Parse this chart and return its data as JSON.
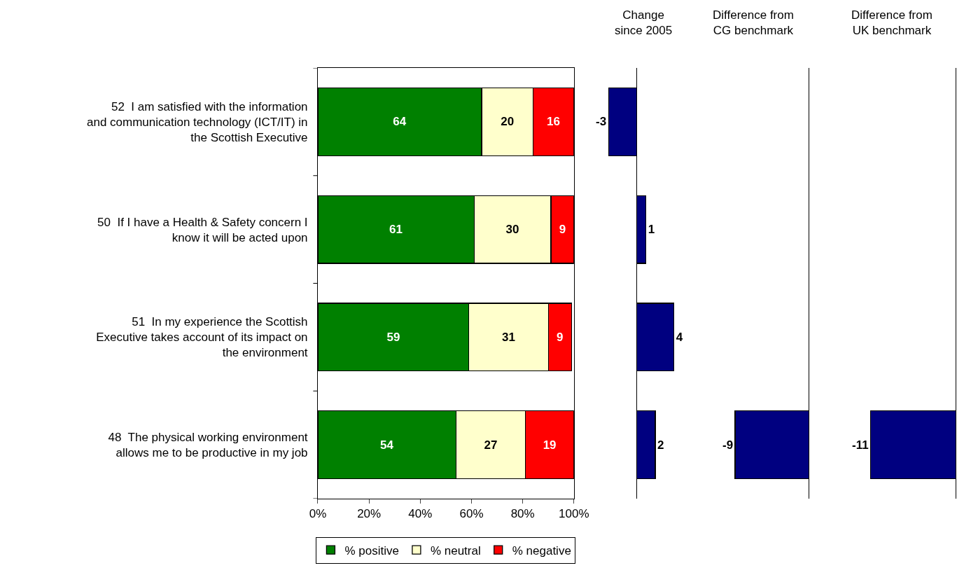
{
  "chart_data": [
    {
      "type": "bar",
      "orientation": "horizontal",
      "stacked": true,
      "categories": [
        "52  I am satisfied with the information and communication technology (ICT/IT) in the Scottish Executive",
        "50  If I have a Health & Safety concern I know it will be acted upon",
        "51  In my experience the Scottish Executive takes account of its impact on the environment",
        "48  The physical working environment allows me to be productive in my job"
      ],
      "series": [
        {
          "name": "% positive",
          "color": "#008000",
          "values": [
            64,
            61,
            59,
            54
          ]
        },
        {
          "name": "% neutral",
          "color": "#ffffcc",
          "values": [
            20,
            30,
            31,
            27
          ]
        },
        {
          "name": "% negative",
          "color": "#ff0000",
          "values": [
            16,
            9,
            9,
            19
          ]
        }
      ],
      "xlim": [
        0,
        100
      ],
      "xticks": [
        {
          "value": 0,
          "label": "0%"
        },
        {
          "value": 20,
          "label": "20%"
        },
        {
          "value": 40,
          "label": "40%"
        },
        {
          "value": 60,
          "label": "60%"
        },
        {
          "value": 80,
          "label": "80%"
        },
        {
          "value": 100,
          "label": "100%"
        }
      ],
      "data_labels": true,
      "legend": "bottom"
    },
    {
      "type": "bar",
      "orientation": "horizontal",
      "title": "Change since 2005",
      "categories": [
        null,
        null,
        null,
        null
      ],
      "values": [
        -3,
        1,
        4,
        2
      ],
      "color": "#000080",
      "data_labels": true
    },
    {
      "type": "bar",
      "orientation": "horizontal",
      "title": "Difference from CG benchmark",
      "categories": [
        null,
        null,
        null,
        null
      ],
      "values": [
        null,
        null,
        null,
        -9
      ],
      "color": "#000080",
      "data_labels": true
    },
    {
      "type": "bar",
      "orientation": "horizontal",
      "title": "Difference from UK benchmark",
      "categories": [
        null,
        null,
        null,
        null
      ],
      "values": [
        null,
        null,
        null,
        -11
      ],
      "color": "#000080",
      "data_labels": true
    }
  ]
}
